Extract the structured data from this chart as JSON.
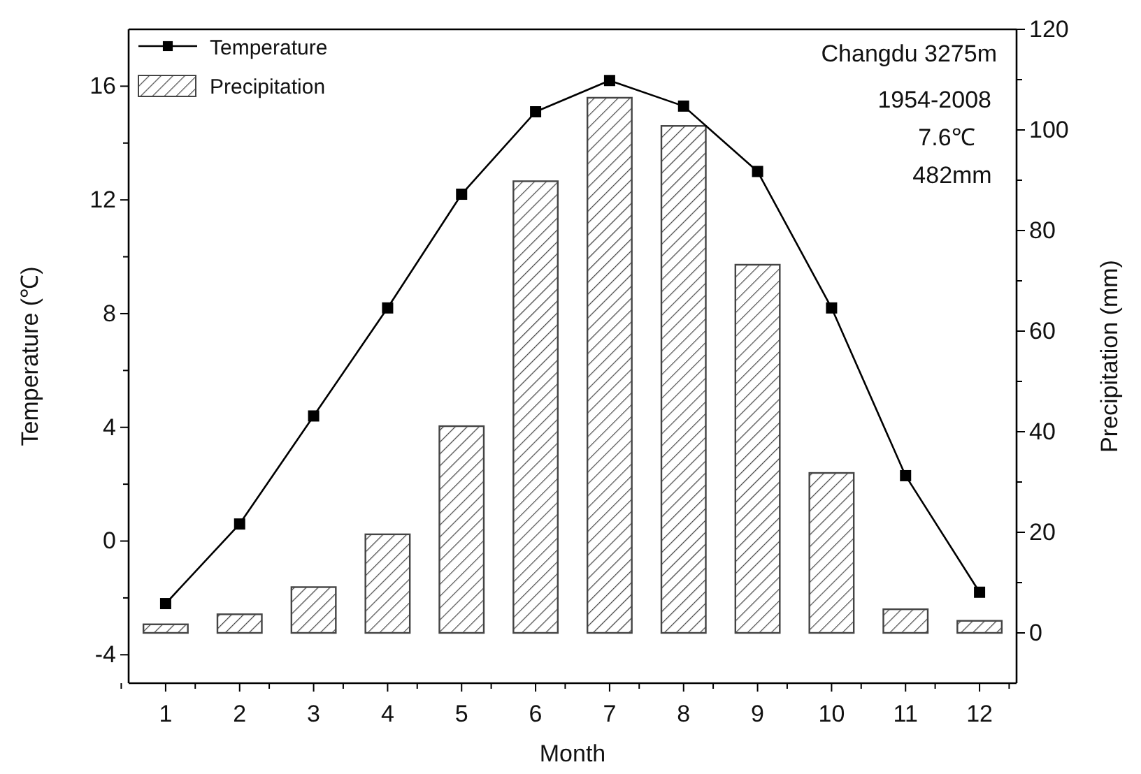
{
  "chart_data": {
    "type": "bar",
    "xlabel": "Month",
    "ylabel": "Temperature (℃)",
    "y2label": "Precipitation (mm)",
    "categories": [
      "1",
      "2",
      "3",
      "4",
      "5",
      "6",
      "7",
      "8",
      "9",
      "10",
      "11",
      "12"
    ],
    "series": [
      {
        "name": "Temperature",
        "type": "line",
        "color": "#000000",
        "marker": "square",
        "line_style": "solid",
        "values": [
          -2.2,
          0.6,
          4.4,
          8.2,
          12.2,
          15.1,
          16.2,
          15.3,
          13.0,
          8.2,
          2.3,
          -1.8
        ]
      },
      {
        "name": "Precipitation",
        "axis": "y2",
        "color": "#444444",
        "values": [
          1.7,
          3.7,
          9.1,
          19.6,
          41.1,
          89.8,
          106.4,
          100.8,
          73.2,
          31.8,
          4.7,
          2.4
        ]
      }
    ],
    "ylim": [
      -5,
      18
    ],
    "yticks": [
      {
        "value": -4,
        "label": "-4"
      },
      {
        "value": -2,
        "label": null
      },
      0,
      {
        "value": 2,
        "label": null
      },
      4,
      {
        "value": 6,
        "label": null
      },
      8,
      {
        "value": 10,
        "label": null
      },
      12,
      {
        "value": 14,
        "label": null
      },
      16
    ],
    "y2lim": [
      -10,
      120
    ],
    "y2ticks": [
      0,
      {
        "value": 10,
        "label": null
      },
      20,
      {
        "value": 30,
        "label": null
      },
      40,
      {
        "value": 50,
        "label": null
      },
      60,
      {
        "value": 70,
        "label": null
      },
      80,
      {
        "value": 90,
        "label": null
      },
      100,
      {
        "value": 110,
        "label": null
      },
      120
    ],
    "annotations": [
      "Changdu 3275m",
      "1954-2008",
      "7.6℃",
      "482mm"
    ],
    "legend": "top left",
    "grid": false
  }
}
